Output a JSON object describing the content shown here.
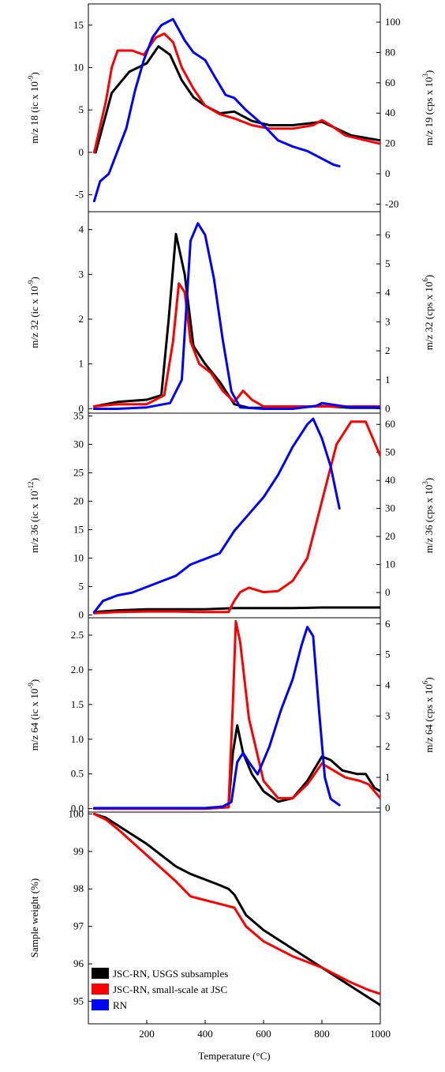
{
  "chart_data": {
    "type": "line",
    "x_axis": {
      "label": "Temperature (°C)",
      "range": [
        0,
        1000
      ],
      "ticks": [
        "200",
        "400",
        "600",
        "800",
        "1000"
      ]
    },
    "legend": {
      "placement": "bottom-left of last panel",
      "entries": [
        {
          "label": "JSC-RN, USGS subsamples",
          "color": "#000000"
        },
        {
          "label": "JSC-RN, small-scale at JSC",
          "color": "#ff0000"
        },
        {
          "label": "RN",
          "color": "#0000ff"
        }
      ]
    },
    "colors": {
      "usgs": "#000000",
      "jsc": "#ff0000",
      "rn": "#0000ff"
    },
    "panels": [
      {
        "id": "m18",
        "left_label": {
          "main": "m/z 18 (ic x 10",
          "exp": "-9",
          "close": ")"
        },
        "right_label": {
          "main": "m/z 19 (cps x 10",
          "exp": "3",
          "close": ")"
        },
        "left_range": [
          -7,
          17.5
        ],
        "right_range": [
          -25,
          112
        ],
        "left_ticks": [
          "-5",
          "0",
          "5",
          "10",
          "15"
        ],
        "right_ticks": [
          "-20",
          "0",
          "20",
          "40",
          "60",
          "80",
          "100"
        ],
        "series": [
          {
            "name": "JSC-RN, USGS subsamples",
            "axis": "left",
            "x": [
              25,
              80,
              140,
              200,
              240,
              280,
              320,
              360,
              400,
              450,
              500,
              560,
              620,
              700,
              800,
              900,
              1000
            ],
            "y": [
              0,
              7,
              9.5,
              10.5,
              12.5,
              11.5,
              8.5,
              6.5,
              5.5,
              4.6,
              4.8,
              3.7,
              3.2,
              3.2,
              3.6,
              2.0,
              1.4
            ]
          },
          {
            "name": "JSC-RN, small-scale at JSC",
            "axis": "left",
            "x": [
              20,
              60,
              80,
              100,
              150,
              190,
              230,
              260,
              290,
              320,
              360,
              400,
              450,
              500,
              560,
              620,
              700,
              770,
              800,
              830,
              880,
              940,
              1000
            ],
            "y": [
              0,
              6,
              10,
              12,
              12,
              11.5,
              13.5,
              14,
              13,
              10,
              7.5,
              5.5,
              4.5,
              4.0,
              3.2,
              2.8,
              2.8,
              3.2,
              3.8,
              3.2,
              2.0,
              1.5,
              1.0
            ]
          },
          {
            "name": "RN",
            "axis": "right",
            "x": [
              20,
              40,
              70,
              100,
              130,
              160,
              190,
              220,
              250,
              270,
              290,
              310,
              330,
              360,
              400,
              430,
              470,
              500,
              540,
              600,
              650,
              700,
              750,
              800,
              840,
              860
            ],
            "y": [
              -18,
              -5,
              0,
              15,
              30,
              55,
              75,
              90,
              98,
              100,
              102,
              95,
              88,
              80,
              75,
              65,
              52,
              50,
              42,
              32,
              22,
              18,
              15,
              10,
              6,
              5
            ]
          }
        ]
      },
      {
        "id": "m32",
        "left_label": {
          "main": "m/z 32 (ic x 10",
          "exp": "-9",
          "close": ")"
        },
        "right_label": {
          "main": "m/z 32 (cps x 10",
          "exp": "6",
          "close": ")"
        },
        "left_range": [
          -0.1,
          4.4
        ],
        "right_range": [
          -0.15,
          6.8
        ],
        "left_ticks": [
          "0",
          "1",
          "2",
          "3",
          "4"
        ],
        "right_ticks": [
          "0",
          "1",
          "2",
          "3",
          "4",
          "5",
          "6"
        ],
        "series": [
          {
            "name": "JSC-RN, USGS subsamples",
            "axis": "left",
            "x": [
              20,
              100,
              200,
              250,
              275,
              300,
              330,
              360,
              400,
              450,
              500,
              550,
              700,
              800,
              900,
              1000
            ],
            "y": [
              0.05,
              0.15,
              0.2,
              0.3,
              2.0,
              3.9,
              3.0,
              1.4,
              1.0,
              0.6,
              0.1,
              0.02,
              0.02,
              0.06,
              0.02,
              0.02
            ]
          },
          {
            "name": "JSC-RN, small-scale at JSC",
            "axis": "left",
            "x": [
              20,
              100,
              200,
              260,
              290,
              310,
              330,
              350,
              380,
              420,
              460,
              500,
              530,
              560,
              600,
              800,
              1000
            ],
            "y": [
              0.05,
              0.1,
              0.1,
              0.3,
              1.5,
              2.8,
              2.6,
              1.5,
              1.0,
              0.8,
              0.4,
              0.15,
              0.4,
              0.2,
              0.05,
              0.05,
              0.05
            ]
          },
          {
            "name": "RN",
            "axis": "right",
            "x": [
              20,
              100,
              200,
              280,
              320,
              350,
              375,
              400,
              430,
              460,
              490,
              520,
              600,
              700,
              780,
              800,
              900,
              1000
            ],
            "y": [
              0,
              0,
              0.05,
              0.2,
              1.0,
              5.8,
              6.4,
              6.0,
              4.5,
              2.4,
              0.6,
              0.05,
              0,
              0,
              0.1,
              0.2,
              0.05,
              0.05
            ]
          }
        ]
      },
      {
        "id": "m36",
        "left_label": {
          "main": "m/z 36 (ic x 10",
          "exp": "-12",
          "close": ")"
        },
        "right_label": {
          "main": "m/z 36 (cps x 10",
          "exp": "3",
          "close": ")"
        },
        "left_range": [
          -0.5,
          35.5
        ],
        "right_range": [
          -9,
          64
        ],
        "left_ticks": [
          "0",
          "5",
          "10",
          "15",
          "20",
          "25",
          "30",
          "35"
        ],
        "right_ticks": [
          "0",
          "10",
          "20",
          "30",
          "40",
          "50",
          "60"
        ],
        "series": [
          {
            "name": "JSC-RN, USGS subsamples",
            "axis": "left",
            "x": [
              20,
              100,
              200,
              300,
              400,
              500,
              600,
              700,
              800,
              900,
              1000
            ],
            "y": [
              0.5,
              0.8,
              1.0,
              1.0,
              1.0,
              1.2,
              1.2,
              1.2,
              1.3,
              1.3,
              1.3
            ]
          },
          {
            "name": "JSC-RN, small-scale at JSC",
            "axis": "left",
            "x": [
              20,
              100,
              200,
              300,
              400,
              480,
              500,
              520,
              550,
              600,
              650,
              700,
              750,
              800,
              850,
              900,
              950,
              1000
            ],
            "y": [
              0.3,
              0.5,
              0.6,
              0.6,
              0.5,
              0.5,
              2.5,
              4.0,
              4.8,
              4.0,
              4.2,
              6.0,
              10,
              20,
              30,
              34,
              34,
              28
            ]
          },
          {
            "name": "RN",
            "axis": "right",
            "x": [
              20,
              50,
              100,
              150,
              200,
              250,
              300,
              350,
              400,
              450,
              500,
              550,
              600,
              650,
              700,
              750,
              770,
              800,
              830,
              860
            ],
            "y": [
              -7,
              -3,
              -1,
              0,
              2,
              4,
              6,
              10,
              12,
              14,
              22,
              28,
              34,
              42,
              52,
              60,
              62,
              55,
              45,
              30
            ]
          }
        ]
      },
      {
        "id": "m64",
        "left_label": {
          "main": "m/z 64 (ic x 10",
          "exp": "-9",
          "close": ")"
        },
        "right_label": {
          "main": "m/z 64 (cps x 10",
          "exp": "6",
          "close": ")"
        },
        "left_range": [
          -0.05,
          2.75
        ],
        "right_range": [
          -0.13,
          6.2
        ],
        "left_ticks": [
          "0.0",
          "0.5",
          "1.0",
          "1.5",
          "2.0",
          "2.5"
        ],
        "right_ticks": [
          "0",
          "1",
          "2",
          "3",
          "4",
          "5",
          "6"
        ],
        "series": [
          {
            "name": "JSC-RN, USGS subsamples",
            "axis": "left",
            "x": [
              20,
              200,
              400,
              480,
              495,
              510,
              530,
              560,
              600,
              650,
              700,
              750,
              800,
              830,
              870,
              920,
              950,
              980,
              1000
            ],
            "y": [
              0,
              0,
              0,
              0.02,
              0.8,
              1.2,
              0.8,
              0.5,
              0.25,
              0.1,
              0.15,
              0.4,
              0.75,
              0.7,
              0.55,
              0.5,
              0.5,
              0.3,
              0.25
            ]
          },
          {
            "name": "JSC-RN, small-scale at JSC",
            "axis": "left",
            "x": [
              20,
              200,
              400,
              480,
              495,
              505,
              520,
              550,
              600,
              650,
              700,
              750,
              800,
              840,
              880,
              930,
              960,
              1000
            ],
            "y": [
              0,
              0,
              0,
              0.02,
              1.5,
              2.7,
              2.4,
              1.3,
              0.4,
              0.15,
              0.15,
              0.35,
              0.65,
              0.55,
              0.45,
              0.4,
              0.35,
              0.15
            ]
          },
          {
            "name": "RN",
            "axis": "right",
            "x": [
              20,
              200,
              400,
              460,
              490,
              510,
              530,
              550,
              580,
              620,
              660,
              700,
              730,
              750,
              770,
              790,
              810,
              830,
              860
            ],
            "y": [
              0,
              0,
              0,
              0.05,
              0.2,
              1.5,
              1.8,
              1.5,
              1.1,
              2.0,
              3.2,
              4.2,
              5.3,
              5.9,
              5.6,
              3.2,
              1.0,
              0.3,
              0.1
            ]
          }
        ]
      },
      {
        "id": "weight",
        "left_label": {
          "main": "Sample weight (%)",
          "exp": "",
          "close": ""
        },
        "right_label": {
          "main": "",
          "exp": "",
          "close": ""
        },
        "left_range": [
          94.4,
          100.05
        ],
        "right_range": null,
        "left_ticks": [
          "95",
          "96",
          "97",
          "98",
          "99",
          "100"
        ],
        "right_ticks": [],
        "series": [
          {
            "name": "JSC-RN, USGS subsamples",
            "axis": "left",
            "x": [
              20,
              60,
              100,
              200,
              300,
              350,
              400,
              450,
              480,
              500,
              540,
              600,
              700,
              800,
              900,
              1000
            ],
            "y": [
              100,
              99.9,
              99.7,
              99.2,
              98.6,
              98.4,
              98.25,
              98.1,
              98.0,
              97.85,
              97.3,
              96.9,
              96.4,
              95.9,
              95.4,
              94.9
            ]
          },
          {
            "name": "JSC-RN, small-scale at JSC",
            "axis": "left",
            "x": [
              20,
              60,
              100,
              200,
              300,
              350,
              400,
              450,
              500,
              540,
              600,
              700,
              800,
              900,
              960,
              1000
            ],
            "y": [
              100,
              99.85,
              99.6,
              98.9,
              98.2,
              97.8,
              97.7,
              97.6,
              97.5,
              97.0,
              96.6,
              96.2,
              95.9,
              95.5,
              95.3,
              95.2
            ]
          }
        ]
      }
    ]
  }
}
